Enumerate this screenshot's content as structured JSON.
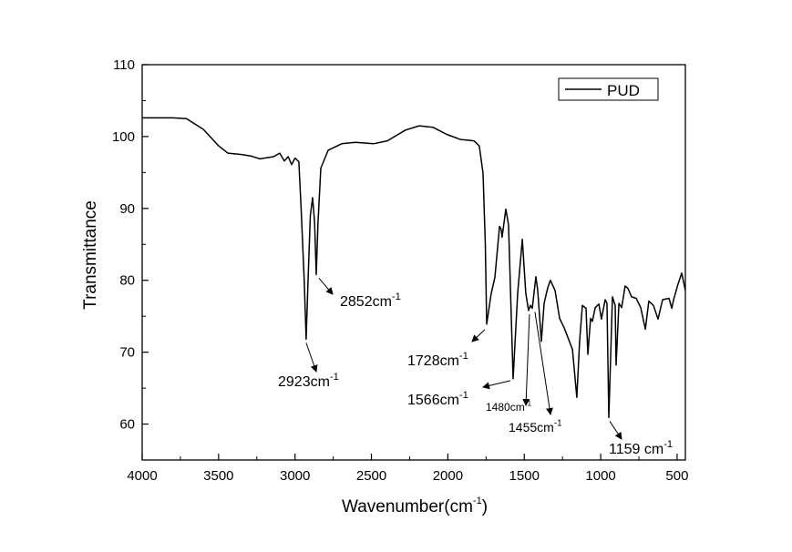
{
  "chart_data": {
    "type": "line",
    "title": "",
    "xlabel": "Wavenumber(cm",
    "xlabel_sup": "-1",
    "xlabel_end": ")",
    "ylabel": "Transmittance",
    "xlim": [
      4000,
      446
    ],
    "ylim": [
      55,
      110
    ],
    "xticks": [
      4000,
      3500,
      3000,
      2500,
      2000,
      1500,
      1000,
      500
    ],
    "yticks": [
      60,
      70,
      80,
      90,
      100,
      110
    ],
    "grid": false,
    "legend": {
      "position": "top-right",
      "entries": [
        "PUD"
      ]
    },
    "series": [
      {
        "name": "PUD",
        "color": "#000000",
        "x": [
          4000,
          3800,
          3710,
          3600,
          3499,
          3440,
          3350,
          3290,
          3230,
          3140,
          3100,
          3070,
          3045,
          3022,
          3000,
          2975,
          2960,
          2940,
          2927,
          2915,
          2900,
          2885,
          2872,
          2861,
          2850,
          2831,
          2783,
          2694,
          2605,
          2486,
          2396,
          2277,
          2187,
          2098,
          2008,
          1919,
          1829,
          1794,
          1770,
          1755,
          1746,
          1716,
          1692,
          1662,
          1651,
          1645,
          1621,
          1603,
          1573,
          1543,
          1513,
          1490,
          1472,
          1460,
          1448,
          1424,
          1412,
          1388,
          1370,
          1346,
          1329,
          1299,
          1269,
          1239,
          1185,
          1156,
          1138,
          1120,
          1096,
          1084,
          1066,
          1054,
          1036,
          1012,
          995,
          971,
          959,
          947,
          923,
          905,
          899,
          881,
          863,
          840,
          822,
          798,
          768,
          738,
          708,
          685,
          655,
          625,
          595,
          553,
          535,
          523,
          494,
          470,
          446
        ],
        "y": [
          102.6,
          102.6,
          102.5,
          101.0,
          98.7,
          97.7,
          97.5,
          97.3,
          96.9,
          97.2,
          97.7,
          96.6,
          97.2,
          96.1,
          97.0,
          96.5,
          90.0,
          80.0,
          71.8,
          80.0,
          89.0,
          91.5,
          88.0,
          80.8,
          88.0,
          95.6,
          98.1,
          99.0,
          99.2,
          99.0,
          99.4,
          100.9,
          101.5,
          101.3,
          100.3,
          99.6,
          99.4,
          98.7,
          94.9,
          85.0,
          73.9,
          78.2,
          80.4,
          87.5,
          87.1,
          86.0,
          89.9,
          87.7,
          66.3,
          78.2,
          85.7,
          78.2,
          75.8,
          76.5,
          76.1,
          80.5,
          78.6,
          71.5,
          76.8,
          79.0,
          80.0,
          78.6,
          74.7,
          73.4,
          70.4,
          63.7,
          71.6,
          76.5,
          76.1,
          69.7,
          74.7,
          74.3,
          76.2,
          76.7,
          74.6,
          77.3,
          76.8,
          60.9,
          77.7,
          76.5,
          68.2,
          76.8,
          76.2,
          79.2,
          78.9,
          77.7,
          77.5,
          76.2,
          73.2,
          77.1,
          76.5,
          74.6,
          77.3,
          77.5,
          76.1,
          77.3,
          79.5,
          81.0,
          78.6
        ]
      }
    ],
    "annotations": [
      {
        "id": "a2923",
        "text": "2923cm",
        "sup": "-1",
        "x": 2927,
        "y": 71.8
      },
      {
        "id": "a2852",
        "text": "2852cm",
        "sup": "-1",
        "x": 2861,
        "y": 80.8
      },
      {
        "id": "a1728",
        "text": "1728cm",
        "sup": "-1",
        "x": 1746,
        "y": 73.9
      },
      {
        "id": "a1566",
        "text": "1566cm",
        "sup": "-1",
        "x": 1573,
        "y": 66.3
      },
      {
        "id": "a1480",
        "text": "1480cm",
        "sup": "-1",
        "x": 1472,
        "y": 75.8
      },
      {
        "id": "a1455",
        "text": "1455cm",
        "sup": "-1",
        "x": 1448,
        "y": 76.1
      },
      {
        "id": "a1159",
        "text": "1159 cm",
        "sup": "-1",
        "x": 947,
        "y": 60.9
      }
    ]
  }
}
